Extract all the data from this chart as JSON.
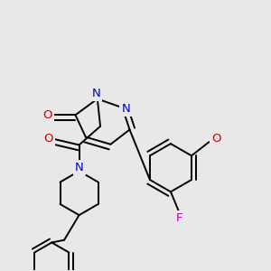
{
  "background_color": "#e8e8e8",
  "atom_colors": {
    "N": "#0000cc",
    "O": "#cc0000",
    "F": "#bb00bb"
  },
  "bond_color": "#000000",
  "fig_width": 3.0,
  "fig_height": 3.0,
  "dpi": 100,
  "lw": 1.4,
  "fontsize": 9.5
}
